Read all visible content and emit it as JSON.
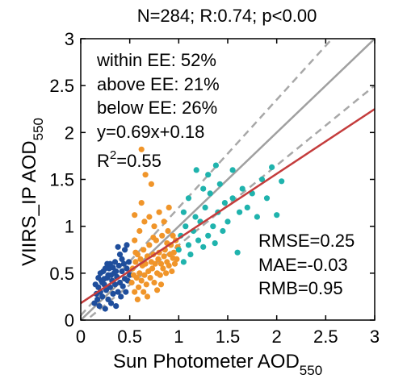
{
  "chart_data": {
    "type": "scatter",
    "title": "N=284; R:0.74; p<0.00",
    "xlabel": "Sun Photometer AOD",
    "xlabel_sub": "550",
    "ylabel": "VIIRS_IP AOD",
    "ylabel_sub": "550",
    "xlim": [
      0,
      3
    ],
    "ylim": [
      0,
      3
    ],
    "xticks": [
      "0",
      "0.5",
      "1",
      "1.5",
      "2",
      "2.5",
      "3"
    ],
    "yticks": [
      "0",
      "0.5",
      "1",
      "1.5",
      "2",
      "2.5",
      "3"
    ],
    "grid": false,
    "stats_top": [
      "within EE: 52%",
      "above EE: 21%",
      "below EE: 26%",
      "y=0.69x+0.18"
    ],
    "r2": {
      "base": "R",
      "sup": "2",
      "rest": "=0.55"
    },
    "stats_bottom": [
      "RMSE=0.25",
      "MAE=-0.03",
      "RMB=0.95"
    ],
    "regression": {
      "slope": 0.69,
      "intercept": 0.18,
      "color": "#c43c3c"
    },
    "one_to_one_line": {
      "color": "#a0a0a0"
    },
    "ee_lines": {
      "color": "#a8a8a8",
      "style": "dashed",
      "upper_slope": 1.15,
      "upper_intercept": 0.05,
      "lower_slope": 0.85,
      "lower_intercept": -0.05
    },
    "series": [
      {
        "color": "#1f4e9c",
        "points": [
          [
            0.14,
            0.18
          ],
          [
            0.16,
            0.28
          ],
          [
            0.17,
            0.22
          ],
          [
            0.18,
            0.35
          ],
          [
            0.19,
            0.15
          ],
          [
            0.2,
            0.3
          ],
          [
            0.21,
            0.42
          ],
          [
            0.22,
            0.25
          ],
          [
            0.23,
            0.52
          ],
          [
            0.24,
            0.38
          ],
          [
            0.25,
            0.12
          ],
          [
            0.26,
            0.32
          ],
          [
            0.27,
            0.45
          ],
          [
            0.28,
            0.22
          ],
          [
            0.29,
            0.55
          ],
          [
            0.3,
            0.35
          ],
          [
            0.31,
            0.18
          ],
          [
            0.32,
            0.42
          ],
          [
            0.33,
            0.28
          ],
          [
            0.34,
            0.5
          ],
          [
            0.35,
            0.38
          ],
          [
            0.36,
            0.15
          ],
          [
            0.37,
            0.46
          ],
          [
            0.38,
            0.3
          ],
          [
            0.39,
            0.58
          ],
          [
            0.4,
            0.4
          ],
          [
            0.41,
            0.25
          ],
          [
            0.42,
            0.52
          ],
          [
            0.43,
            0.36
          ],
          [
            0.44,
            0.6
          ],
          [
            0.45,
            0.44
          ],
          [
            0.46,
            0.3
          ],
          [
            0.47,
            0.55
          ],
          [
            0.48,
            0.42
          ],
          [
            0.49,
            0.62
          ],
          [
            0.5,
            0.48
          ],
          [
            0.2,
            0.5
          ],
          [
            0.25,
            0.55
          ],
          [
            0.3,
            0.6
          ],
          [
            0.35,
            0.62
          ],
          [
            0.4,
            0.7
          ],
          [
            0.45,
            0.75
          ],
          [
            0.38,
            0.78
          ],
          [
            0.28,
            0.48
          ],
          [
            0.33,
            0.56
          ],
          [
            0.22,
            0.4
          ],
          [
            0.18,
            0.45
          ],
          [
            0.27,
            0.6
          ],
          [
            0.42,
            0.65
          ],
          [
            0.36,
            0.52
          ],
          [
            0.31,
            0.48
          ],
          [
            0.24,
            0.44
          ],
          [
            0.15,
            0.38
          ],
          [
            0.47,
            0.8
          ]
        ]
      },
      {
        "color": "#f0952a",
        "points": [
          [
            0.52,
            0.4
          ],
          [
            0.53,
            0.55
          ],
          [
            0.55,
            0.3
          ],
          [
            0.56,
            0.62
          ],
          [
            0.57,
            0.45
          ],
          [
            0.58,
            0.7
          ],
          [
            0.59,
            0.35
          ],
          [
            0.6,
            0.5
          ],
          [
            0.61,
            0.65
          ],
          [
            0.62,
            0.42
          ],
          [
            0.63,
            0.58
          ],
          [
            0.64,
            0.75
          ],
          [
            0.65,
            0.48
          ],
          [
            0.66,
            0.6
          ],
          [
            0.67,
            0.38
          ],
          [
            0.68,
            0.68
          ],
          [
            0.69,
            0.52
          ],
          [
            0.7,
            0.8
          ],
          [
            0.71,
            0.45
          ],
          [
            0.72,
            0.62
          ],
          [
            0.73,
            0.55
          ],
          [
            0.74,
            0.7
          ],
          [
            0.75,
            0.4
          ],
          [
            0.76,
            0.6
          ],
          [
            0.77,
            0.85
          ],
          [
            0.78,
            0.5
          ],
          [
            0.79,
            0.65
          ],
          [
            0.8,
            0.72
          ],
          [
            0.81,
            0.48
          ],
          [
            0.82,
            0.6
          ],
          [
            0.83,
            0.9
          ],
          [
            0.84,
            0.55
          ],
          [
            0.85,
            0.68
          ],
          [
            0.86,
            0.75
          ],
          [
            0.87,
            0.5
          ],
          [
            0.88,
            0.62
          ],
          [
            0.89,
            0.95
          ],
          [
            0.9,
            0.58
          ],
          [
            0.91,
            0.7
          ],
          [
            0.92,
            0.8
          ],
          [
            0.93,
            0.52
          ],
          [
            0.94,
            0.66
          ],
          [
            0.95,
            0.72
          ],
          [
            0.96,
            0.6
          ],
          [
            0.97,
            0.85
          ],
          [
            0.98,
            0.65
          ],
          [
            0.55,
            0.85
          ],
          [
            0.6,
            0.95
          ],
          [
            0.65,
            1.05
          ],
          [
            0.7,
            1.1
          ],
          [
            0.75,
            1.0
          ],
          [
            0.8,
            1.15
          ],
          [
            0.85,
            1.05
          ],
          [
            0.9,
            1.2
          ],
          [
            0.62,
            1.25
          ],
          [
            0.55,
            1.12
          ],
          [
            0.58,
            0.22
          ],
          [
            0.68,
            0.25
          ],
          [
            0.78,
            0.32
          ],
          [
            0.72,
            1.45
          ],
          [
            0.66,
            1.55
          ],
          [
            0.62,
            1.82
          ],
          [
            0.56,
            0.72
          ],
          [
            0.74,
            0.88
          ],
          [
            0.88,
            0.82
          ],
          [
            0.94,
            0.9
          ],
          [
            0.82,
            0.38
          ],
          [
            0.64,
            0.3
          ],
          [
            0.54,
            0.48
          ],
          [
            0.99,
            0.78
          ]
        ]
      },
      {
        "color": "#1fb3ad",
        "points": [
          [
            1.0,
            0.75
          ],
          [
            1.02,
            0.9
          ],
          [
            1.05,
            0.62
          ],
          [
            1.07,
            1.0
          ],
          [
            1.1,
            0.8
          ],
          [
            1.12,
            0.7
          ],
          [
            1.15,
            0.95
          ],
          [
            1.17,
            1.1
          ],
          [
            1.2,
            0.85
          ],
          [
            1.22,
            1.05
          ],
          [
            1.25,
            0.78
          ],
          [
            1.27,
            1.2
          ],
          [
            1.3,
            0.9
          ],
          [
            1.32,
            1.35
          ],
          [
            1.35,
            1.0
          ],
          [
            1.37,
            0.82
          ],
          [
            1.4,
            1.15
          ],
          [
            1.42,
            1.45
          ],
          [
            1.45,
            0.95
          ],
          [
            1.47,
            1.25
          ],
          [
            1.5,
            1.05
          ],
          [
            1.55,
            1.3
          ],
          [
            1.6,
            0.72
          ],
          [
            1.62,
            1.15
          ],
          [
            1.65,
            1.4
          ],
          [
            1.7,
            1.2
          ],
          [
            1.75,
            1.35
          ],
          [
            1.8,
            1.1
          ],
          [
            1.85,
            1.5
          ],
          [
            1.9,
            1.3
          ],
          [
            2.0,
            1.12
          ],
          [
            2.05,
            1.48
          ],
          [
            1.95,
            1.63
          ],
          [
            1.3,
            1.55
          ],
          [
            1.25,
            1.4
          ],
          [
            1.1,
            1.3
          ],
          [
            1.05,
            1.15
          ],
          [
            1.18,
            1.6
          ],
          [
            1.38,
            1.65
          ],
          [
            1.55,
            1.6
          ]
        ]
      }
    ]
  }
}
